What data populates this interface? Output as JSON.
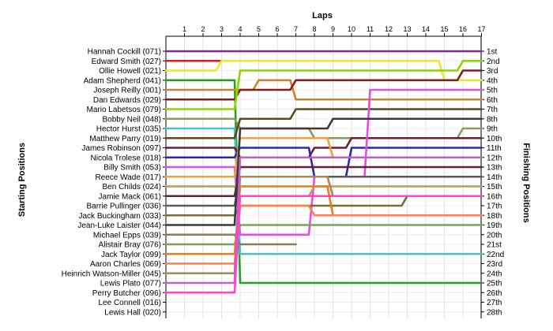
{
  "chart_data": {
    "type": "line",
    "title": "",
    "xlabel": "Laps",
    "ylabel_left": "Starting Positions",
    "ylabel_right": "Finishing Positions",
    "laps": [
      1,
      2,
      3,
      4,
      5,
      6,
      7,
      8,
      9,
      10,
      11,
      12,
      13,
      14,
      15,
      16,
      17
    ],
    "positions_range": [
      1,
      28
    ],
    "grid": true,
    "starting_labels": [
      "Hannah Cockill (071)",
      "Edward Smith (027)",
      "Ollie Howell (021)",
      "Adam Shepherd (041)",
      "Joseph Reilly (001)",
      "Dan Edwards (029)",
      "Mario Labetsos (079)",
      "Bobby Neil (048)",
      "Hector Hurst (035)",
      "Matthew Parry (019)",
      "James Robinson (097)",
      "Nicola Trolese (018)",
      "Billy Smith (053)",
      "Reece Wade (017)",
      "Ben Childs (024)",
      "Jamie Mack (061)",
      "Barrie Pullinger (036)",
      "Jack Buckingham (033)",
      "Jean-Luke Laister (044)",
      "Michael Epps (039)",
      "Alistair Bray (076)",
      "Jack Taylor (099)",
      "Aaron Charles (069)",
      "Heinrich Watson-Miller (045)",
      "Lewis Plato (077)",
      "Perry Butcher (096)",
      "Lee Connell (016)",
      "Lewis Hall (020)"
    ],
    "finishing_labels": [
      "1st",
      "2nd",
      "3rd",
      "4th",
      "5th",
      "6th",
      "7th",
      "8th",
      "9th",
      "10th",
      "11th",
      "12th",
      "13th",
      "14th",
      "15th",
      "16th",
      "17th",
      "18th",
      "19th",
      "20th",
      "21st",
      "22nd",
      "23rd",
      "24th",
      "25th",
      "26th",
      "27th",
      "28th"
    ],
    "series": [
      {
        "color": "#7b2a8c",
        "positions": [
          1,
          1,
          1,
          1,
          1,
          1,
          1,
          1,
          1,
          1,
          1,
          1,
          1,
          1,
          1,
          1,
          1,
          1
        ]
      },
      {
        "color": "#cc2222",
        "positions": [
          2,
          2,
          2,
          2
        ]
      },
      {
        "color": "#e8e830",
        "positions": [
          3,
          3,
          3,
          2,
          2,
          2,
          2,
          2,
          2,
          2,
          2,
          2,
          2,
          2,
          2,
          4,
          4,
          4
        ]
      },
      {
        "color": "#22a022",
        "positions": [
          4,
          4,
          4,
          4,
          25,
          25,
          25,
          25,
          25,
          25,
          25,
          25,
          25,
          25,
          25,
          25,
          25,
          25
        ]
      },
      {
        "color": "#cd7f32",
        "positions": [
          5,
          5,
          5,
          5,
          5,
          4,
          4,
          6,
          6,
          6,
          6,
          6,
          6,
          6,
          6,
          6,
          6,
          6
        ]
      },
      {
        "color": "#8b1a1a",
        "positions": [
          6,
          6,
          6,
          6,
          5,
          5,
          5,
          4,
          4,
          4,
          4,
          4,
          4,
          4,
          4,
          4,
          3,
          3
        ]
      },
      {
        "color": "#8fd400",
        "positions": [
          7,
          7,
          7,
          7,
          3,
          3,
          3,
          3,
          3,
          3,
          3,
          3,
          3,
          3,
          3,
          3,
          2,
          2
        ]
      },
      {
        "color": "#8a9a5b",
        "positions": [
          8,
          8,
          8,
          8,
          9,
          9,
          9,
          9,
          10,
          10,
          10,
          10,
          10,
          10,
          10,
          10,
          9,
          9
        ]
      },
      {
        "color": "#46c2cf",
        "positions": [
          9,
          9,
          9,
          9,
          22,
          22,
          22,
          22,
          22,
          22,
          22,
          22,
          22,
          22,
          22,
          22,
          22,
          22
        ]
      },
      {
        "color": "#5a4a1e",
        "positions": [
          10,
          10,
          10,
          10,
          8,
          8,
          8,
          7,
          7,
          7,
          7,
          7,
          7,
          7,
          7,
          7,
          7,
          7
        ]
      },
      {
        "color": "#6a1e3a",
        "positions": [
          11,
          11,
          11,
          11,
          12,
          12,
          12,
          12,
          11,
          11,
          10,
          10,
          10,
          10,
          10,
          10,
          10,
          10
        ]
      },
      {
        "color": "#2a2aa8",
        "positions": [
          12,
          12,
          12,
          12,
          11,
          11,
          11,
          11,
          14,
          14,
          11,
          11,
          11,
          11,
          11,
          11,
          11,
          11
        ]
      },
      {
        "color": "#e04fe0",
        "positions": [
          13,
          13,
          13,
          13,
          20,
          20,
          20,
          20,
          14,
          14,
          14,
          5,
          5,
          5,
          5,
          5,
          5,
          5
        ]
      },
      {
        "color": "#f0a040",
        "positions": [
          14,
          14,
          14,
          14,
          10,
          10,
          10,
          10,
          10,
          12,
          12,
          12,
          12,
          12,
          12,
          12,
          12,
          12
        ]
      },
      {
        "color": "#c09a55",
        "positions": [
          15,
          15,
          15,
          15,
          16,
          16,
          16,
          16,
          15,
          15,
          15,
          15,
          15,
          15,
          15,
          15,
          15,
          15
        ]
      },
      {
        "color": "#6a1e3a",
        "positions": [
          16,
          16,
          16,
          16,
          13,
          13,
          13,
          13,
          13,
          13,
          13,
          13,
          13,
          13,
          13,
          13,
          13,
          13
        ]
      },
      {
        "color": "#5a5a5a",
        "positions": [
          17,
          17,
          17,
          17,
          14,
          14,
          14,
          14,
          14,
          14,
          14,
          14,
          14,
          14,
          14,
          14,
          14,
          14
        ]
      },
      {
        "color": "#7a6a3a",
        "positions": [
          18,
          18,
          18,
          18,
          17,
          17,
          17,
          17,
          17,
          17,
          17,
          17,
          17,
          16,
          16,
          16,
          16,
          16
        ]
      },
      {
        "color": "#3a3a3a",
        "positions": [
          19,
          19,
          19,
          19,
          9,
          9,
          9,
          9,
          9,
          8,
          8,
          8,
          8,
          8,
          8,
          8,
          8,
          8
        ]
      },
      {
        "color": "#8c7a55",
        "positions": [
          20,
          20,
          20,
          20,
          21,
          21,
          21,
          21
        ]
      },
      {
        "color": "#7aa060",
        "positions": [
          21,
          21,
          21,
          21,
          19,
          19,
          19,
          19,
          19,
          19,
          19,
          19,
          19,
          19,
          19,
          19,
          19,
          19
        ]
      },
      {
        "color": "#f07a1a",
        "positions": [
          22,
          22,
          22,
          22,
          15,
          15,
          15,
          15,
          15,
          18,
          18,
          18,
          18,
          18,
          18,
          18,
          18,
          18
        ]
      },
      {
        "color": "#ff7f50",
        "positions": [
          23,
          23,
          23,
          23,
          17,
          17,
          17,
          17,
          18,
          18,
          18,
          18,
          18,
          18,
          18,
          18,
          18,
          18
        ]
      },
      {
        "color": "#a68a5a",
        "positions": [
          24,
          24,
          24,
          24,
          14,
          14,
          14,
          14,
          14,
          16,
          16,
          16,
          16,
          16,
          16,
          16,
          16,
          16
        ]
      },
      {
        "color": "#c060c0",
        "positions": [
          25,
          25,
          25,
          25,
          12,
          12,
          12,
          12,
          12,
          12,
          12,
          12,
          12,
          12,
          12,
          12,
          12,
          12
        ]
      },
      {
        "color": "#ff44cc",
        "positions": [
          26,
          26,
          26,
          26,
          16,
          16,
          16,
          16,
          16,
          16,
          16,
          16,
          16,
          16,
          16,
          16,
          16,
          16
        ]
      }
    ]
  }
}
